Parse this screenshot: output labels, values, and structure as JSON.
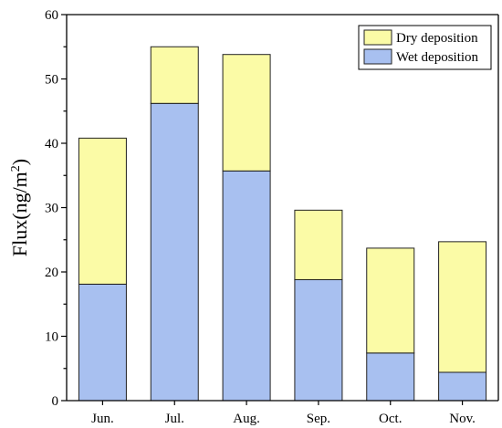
{
  "chart_data": {
    "type": "bar",
    "stacked": true,
    "categories": [
      "Jun.",
      "Jul.",
      "Aug.",
      "Sep.",
      "Oct.",
      "Nov."
    ],
    "series": [
      {
        "name": "Wet deposition",
        "values": [
          18.1,
          46.2,
          35.7,
          18.8,
          7.4,
          4.4
        ],
        "color": "#a8c0f0"
      },
      {
        "name": "Dry deposition",
        "values": [
          22.7,
          8.8,
          18.1,
          10.8,
          16.3,
          20.3
        ],
        "color": "#fbfba6"
      }
    ],
    "totals": [
      40.8,
      55.0,
      53.8,
      29.6,
      23.7,
      24.7
    ],
    "ylabel": {
      "prefix": "Flux(ng/m",
      "superscript": "2",
      "suffix": ")"
    },
    "ylim": [
      0,
      60
    ],
    "yticks": [
      "0",
      "10",
      "20",
      "30",
      "40",
      "50",
      "60"
    ],
    "grid": false,
    "legend": {
      "position": "top-right",
      "entries": [
        "Dry deposition",
        "Wet deposition"
      ]
    }
  }
}
